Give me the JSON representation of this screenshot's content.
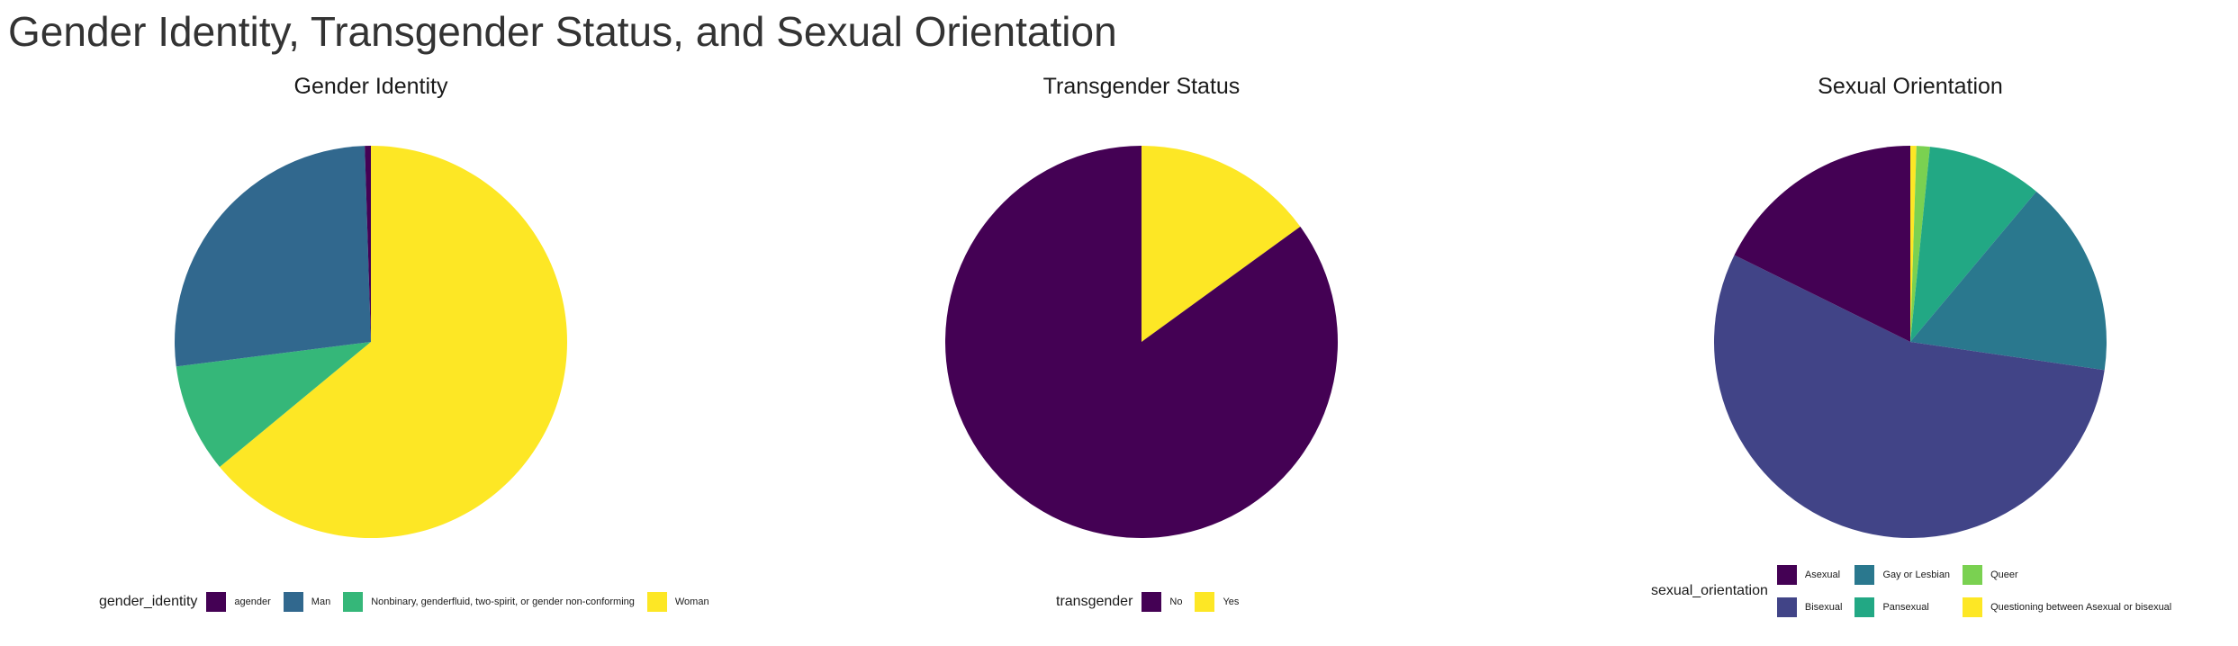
{
  "title": "Gender Identity, Transgender Status, and Sexual Orientation",
  "chart_data": [
    {
      "type": "pie",
      "title": "Gender Identity",
      "legend_title": "gender_identity",
      "legend_position": "bottom",
      "start_angle_deg": 0,
      "direction": "clockwise",
      "slices": [
        {
          "label": "Woman",
          "value": 64.0,
          "color": "#FDE725"
        },
        {
          "label": "Nonbinary, genderfluid, two-spirit, or gender non-conforming",
          "value": 9.0,
          "color": "#35B779"
        },
        {
          "label": "Man",
          "value": 26.5,
          "color": "#31688E"
        },
        {
          "label": "agender",
          "value": 0.5,
          "color": "#440154"
        }
      ],
      "legend_order": [
        "agender",
        "Man",
        "Nonbinary, genderfluid, two-spirit, or gender non-conforming",
        "Woman"
      ]
    },
    {
      "type": "pie",
      "title": "Transgender Status",
      "legend_title": "transgender",
      "legend_position": "bottom",
      "start_angle_deg": 0,
      "direction": "clockwise",
      "slices": [
        {
          "label": "Yes",
          "value": 15.0,
          "color": "#FDE725"
        },
        {
          "label": "No",
          "value": 85.0,
          "color": "#440154"
        }
      ],
      "legend_order": [
        "No",
        "Yes"
      ]
    },
    {
      "type": "pie",
      "title": "Sexual Orientation",
      "legend_title": "sexual_orientation",
      "legend_position": "bottom",
      "start_angle_deg": 0,
      "direction": "clockwise",
      "slices": [
        {
          "label": "Questioning between Asexual or bisexual",
          "value": 0.5,
          "color": "#FDE725"
        },
        {
          "label": "Queer",
          "value": 1.1,
          "color": "#7AD151"
        },
        {
          "label": "Pansexual",
          "value": 9.5,
          "color": "#22A884"
        },
        {
          "label": "Gay or Lesbian",
          "value": 16.2,
          "color": "#2A788E"
        },
        {
          "label": "Bisexual",
          "value": 55.0,
          "color": "#414487"
        },
        {
          "label": "Asexual",
          "value": 17.7,
          "color": "#440154"
        }
      ],
      "legend_order": [
        "Asexual",
        "Bisexual",
        "Gay or Lesbian",
        "Pansexual",
        "Queer",
        "Questioning between Asexual or bisexual"
      ]
    }
  ]
}
